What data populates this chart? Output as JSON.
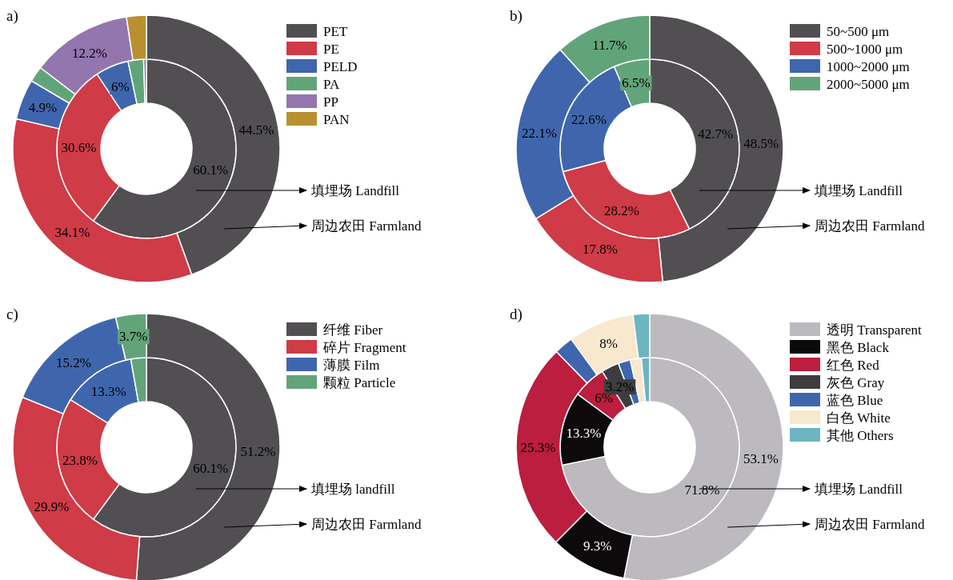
{
  "chart_data": [
    {
      "type": "donut",
      "title": "a)",
      "legend": "right",
      "categories": [
        "PET",
        "PE",
        "PELD",
        "PA",
        "PP",
        "PAN"
      ],
      "colors": [
        "#514f52",
        "#cf3b47",
        "#3f66ad",
        "#62a47a",
        "#9376ae",
        "#b99030"
      ],
      "series": [
        {
          "name": "填埋场 Landfill",
          "values": [
            60.1,
            30.6,
            6,
            2.8,
            0.5,
            null
          ],
          "value_labels": [
            "60.1%",
            "30.6%",
            "6%",
            null,
            null,
            null
          ]
        },
        {
          "name": "周边农田 Farmland",
          "values": [
            44.5,
            34.1,
            4.9,
            1.9,
            12.2,
            2.4
          ],
          "value_labels": [
            "44.5%",
            "34.1%",
            "4.9%",
            null,
            "12.2%",
            null
          ]
        }
      ]
    },
    {
      "type": "donut",
      "title": "b)",
      "legend": "right",
      "categories": [
        "50~500 μm",
        "500~1000 μm",
        "1000~2000 μm",
        "2000~5000 μm"
      ],
      "colors": [
        "#514f52",
        "#cf3b47",
        "#3f66ad",
        "#62a47a"
      ],
      "series": [
        {
          "name": "填埋场 Landfill",
          "values": [
            42.7,
            28.2,
            22.6,
            6.5
          ],
          "value_labels": [
            "42.7%",
            "28.2%",
            "22.6%",
            "6.5%"
          ]
        },
        {
          "name": "周边农田 Farmland",
          "values": [
            48.5,
            17.8,
            22.1,
            11.7
          ],
          "value_labels": [
            "48.5%",
            "17.8%",
            "22.1%",
            "11.7%"
          ]
        }
      ]
    },
    {
      "type": "donut",
      "title": "c)",
      "legend": "right",
      "categories": [
        "纤维 Fiber",
        "碎片 Fragment",
        "薄膜 Film",
        "颗粒 Particle"
      ],
      "colors": [
        "#514f52",
        "#cf3b47",
        "#3f66ad",
        "#62a47a"
      ],
      "series": [
        {
          "name": "填埋场 landfill",
          "values": [
            60.1,
            23.8,
            13.3,
            2.8
          ],
          "value_labels": [
            "60.1%",
            "23.8%",
            "13.3%",
            null
          ]
        },
        {
          "name": "周边农田 Farmland",
          "values": [
            51.2,
            29.9,
            15.2,
            3.7
          ],
          "value_labels": [
            "51.2%",
            "29.9%",
            "15.2%",
            "3.7%"
          ]
        }
      ]
    },
    {
      "type": "donut",
      "title": "d)",
      "legend": "right",
      "categories": [
        "透明 Transparent",
        "黑色 Black",
        "红色 Red",
        "灰色 Gray",
        "蓝色 Blue",
        "白色 White",
        "其他 Others"
      ],
      "colors": [
        "#bcbabe",
        "#0d0a0b",
        "#bb1e3e",
        "#3d3d3f",
        "#3f66ad",
        "#f8e8cd",
        "#6db5c0"
      ],
      "series": [
        {
          "name": "填埋场 Landfill",
          "values": [
            71.8,
            13.3,
            6,
            3.2,
            2.2,
            2.0,
            1.5
          ],
          "value_labels": [
            "71.8%",
            "13.3%",
            "6%",
            "3.2%",
            null,
            null,
            null
          ]
        },
        {
          "name": "周边农田 Farmland",
          "values": [
            53.1,
            9.3,
            25.3,
            null,
            2.3,
            8,
            2.0
          ],
          "value_labels": [
            "53.1%",
            "9.3%",
            "25.3%",
            null,
            null,
            "8%",
            null
          ]
        }
      ]
    }
  ]
}
